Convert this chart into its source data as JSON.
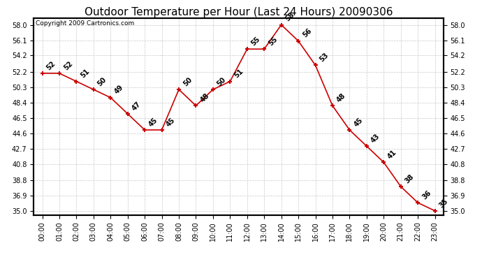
{
  "title": "Outdoor Temperature per Hour (Last 24 Hours) 20090306",
  "copyright": "Copyright 2009 Cartronics.com",
  "hours": [
    "00:00",
    "01:00",
    "02:00",
    "03:00",
    "04:00",
    "05:00",
    "06:00",
    "07:00",
    "08:00",
    "09:00",
    "10:00",
    "11:00",
    "12:00",
    "13:00",
    "14:00",
    "15:00",
    "16:00",
    "17:00",
    "18:00",
    "19:00",
    "20:00",
    "21:00",
    "22:00",
    "23:00"
  ],
  "temps": [
    52,
    52,
    51,
    50,
    49,
    47,
    45,
    45,
    50,
    48,
    50,
    51,
    55,
    55,
    58,
    56,
    53,
    48,
    45,
    43,
    41,
    38,
    36,
    35
  ],
  "line_color": "#cc0000",
  "marker_color": "#000000",
  "bg_color": "#ffffff",
  "grid_color": "#c8c8c8",
  "ylim_min": 35.0,
  "ylim_max": 58.0,
  "yticks": [
    35.0,
    36.9,
    38.8,
    40.8,
    42.7,
    44.6,
    46.5,
    48.4,
    50.3,
    52.2,
    54.2,
    56.1,
    58.0
  ],
  "title_fontsize": 11,
  "copyright_fontsize": 6.5,
  "label_fontsize": 7,
  "tick_fontsize": 7
}
